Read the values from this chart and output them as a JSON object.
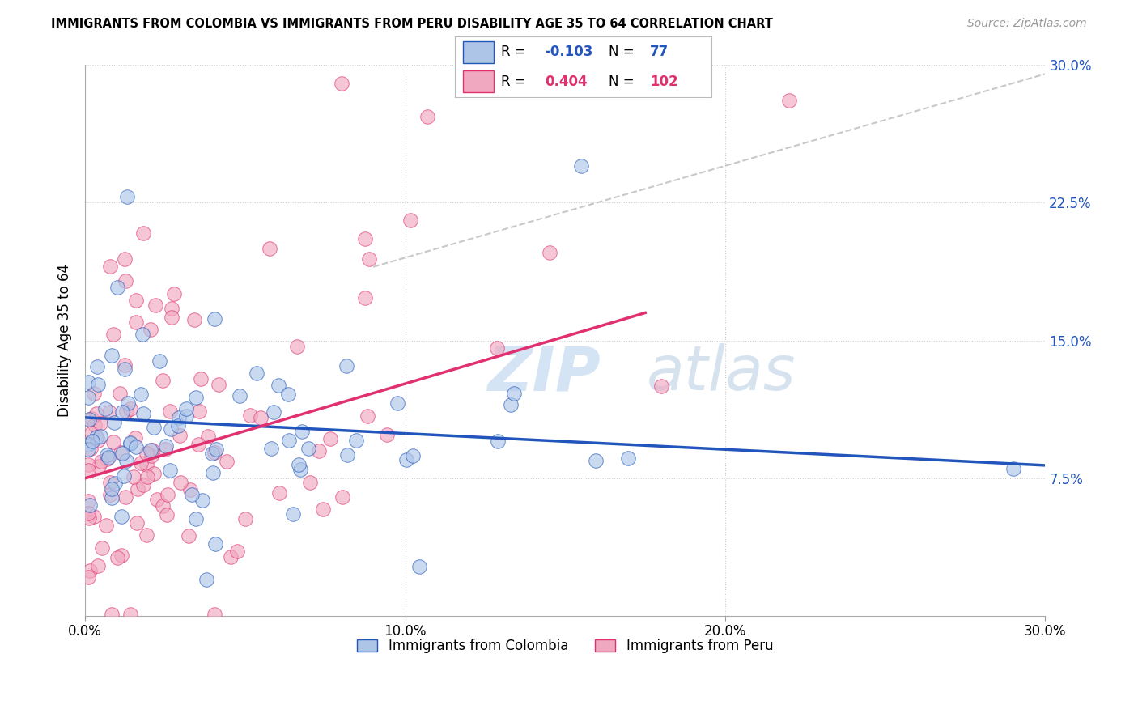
{
  "title": "IMMIGRANTS FROM COLOMBIA VS IMMIGRANTS FROM PERU DISABILITY AGE 35 TO 64 CORRELATION CHART",
  "source": "Source: ZipAtlas.com",
  "ylabel": "Disability Age 35 to 64",
  "legend_label1": "Immigrants from Colombia",
  "legend_label2": "Immigrants from Peru",
  "r1": -0.103,
  "n1": 77,
  "r2": 0.404,
  "n2": 102,
  "xmin": 0.0,
  "xmax": 0.3,
  "ymin": 0.0,
  "ymax": 0.3,
  "ytick_vals": [
    0.075,
    0.15,
    0.225,
    0.3
  ],
  "ytick_labels": [
    "7.5%",
    "15.0%",
    "22.5%",
    "30.0%"
  ],
  "xtick_vals": [
    0.0,
    0.1,
    0.2,
    0.3
  ],
  "xtick_labels": [
    "0.0%",
    "10.0%",
    "20.0%",
    "30.0%"
  ],
  "color_colombia": "#adc6e8",
  "color_peru": "#f0a8c0",
  "line_colombia": "#2255bb",
  "line_peru": "#e03070",
  "background": "#ffffff",
  "grid_color": "#cccccc",
  "watermark_zip": "ZIP",
  "watermark_atlas": "atlas",
  "col_line_x": [
    0.0,
    0.3
  ],
  "col_line_y": [
    0.108,
    0.082
  ],
  "peru_line_x": [
    0.0,
    0.175
  ],
  "peru_line_y": [
    0.075,
    0.165
  ],
  "dash_line_x": [
    0.09,
    0.3
  ],
  "dash_line_y": [
    0.19,
    0.295
  ]
}
